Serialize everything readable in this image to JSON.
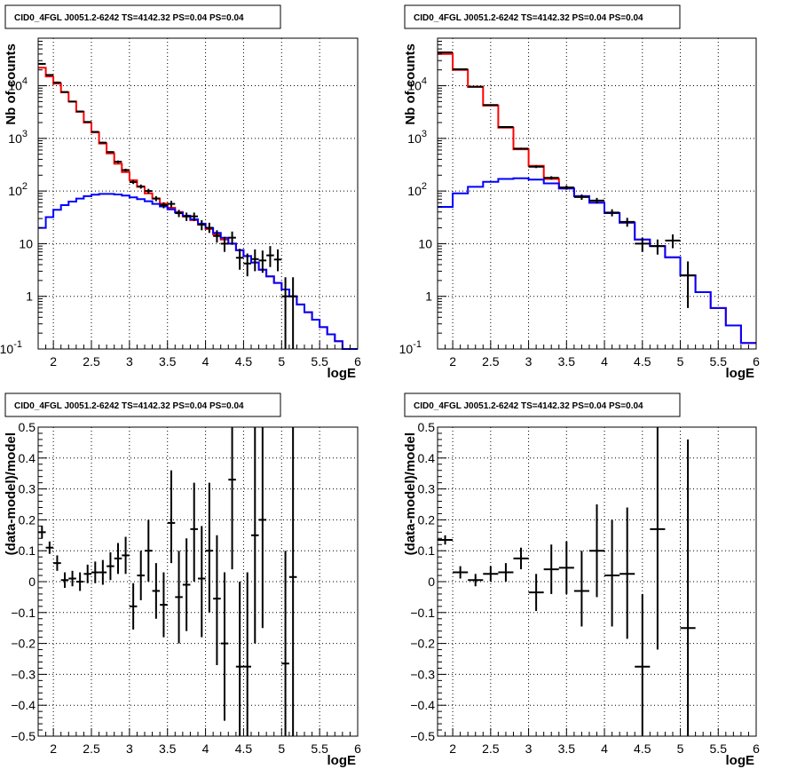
{
  "chart_data": [
    {
      "type": "histogram",
      "title": "CID0_4FGL J0051.2-6242 TS=4142.32 PS=0.04 PS=0.04",
      "xlabel": "logE",
      "ylabel": "Nb of counts",
      "log_y": true,
      "xlim": [
        1.8,
        6.0
      ],
      "ylim": [
        0.1,
        80000
      ],
      "grid": true,
      "x_ticks": [
        "2",
        "2.5",
        "3",
        "3.5",
        "4",
        "4.5",
        "5",
        "5.5",
        "6"
      ],
      "y_ticks": [
        "10^{-1}",
        "1",
        "10",
        "10^{2}",
        "10^{3}",
        "10^{4}"
      ],
      "bin_edges": [
        1.8,
        1.9,
        2.0,
        2.1,
        2.2,
        2.3,
        2.4,
        2.5,
        2.6,
        2.7,
        2.8,
        2.9,
        3.0,
        3.1,
        3.2,
        3.3,
        3.4,
        3.5,
        3.6,
        3.7,
        3.8,
        3.9,
        4.0,
        4.1,
        4.2,
        4.3,
        4.4,
        4.5,
        4.6,
        4.7,
        4.8,
        4.9,
        5.0,
        5.1,
        5.2,
        5.3,
        5.4,
        5.5,
        5.6,
        5.7,
        5.8,
        5.9,
        6.0
      ],
      "series": [
        {
          "color": "#ff0000",
          "style": "step",
          "values": [
            22000,
            15000,
            11000,
            7500,
            5000,
            3200,
            2000,
            1300,
            800,
            520,
            330,
            230,
            160,
            120,
            90,
            72,
            58,
            48,
            40,
            33,
            28,
            23,
            19,
            15,
            12,
            10,
            7.5,
            5.8,
            4.4,
            3.2,
            2.4,
            1.8,
            1.35,
            1.0,
            0.7,
            0.5,
            0.36,
            0.26,
            0.19,
            0.14,
            0.1,
            0.1
          ]
        },
        {
          "color": "#0000ff",
          "style": "step",
          "values": [
            20,
            32,
            44,
            54,
            63,
            72,
            80,
            85,
            88,
            88,
            86,
            82,
            76,
            70,
            64,
            57,
            51,
            45,
            39,
            34,
            29,
            24,
            20,
            16,
            13,
            10,
            7.5,
            5.8,
            4.4,
            3.2,
            2.4,
            1.8,
            1.35,
            1.0,
            0.7,
            0.5,
            0.36,
            0.26,
            0.19,
            0.14,
            0.1,
            0.1
          ]
        }
      ],
      "points": [
        {
          "x": 1.85,
          "y": 26000,
          "lo": 25000,
          "hi": 27000
        },
        {
          "x": 1.95,
          "y": 16000,
          "lo": 15500,
          "hi": 16500
        },
        {
          "x": 2.05,
          "y": 11500,
          "lo": 11000,
          "hi": 12000
        },
        {
          "x": 2.15,
          "y": 7600,
          "lo": 7400,
          "hi": 7800
        },
        {
          "x": 2.25,
          "y": 5000,
          "lo": 4900,
          "hi": 5100
        },
        {
          "x": 2.35,
          "y": 3250,
          "lo": 3150,
          "hi": 3350
        },
        {
          "x": 2.45,
          "y": 2050,
          "lo": 2000,
          "hi": 2100
        },
        {
          "x": 2.55,
          "y": 1330,
          "lo": 1290,
          "hi": 1370
        },
        {
          "x": 2.65,
          "y": 830,
          "lo": 800,
          "hi": 860
        },
        {
          "x": 2.75,
          "y": 550,
          "lo": 530,
          "hi": 570
        },
        {
          "x": 2.85,
          "y": 360,
          "lo": 340,
          "hi": 380
        },
        {
          "x": 2.95,
          "y": 250,
          "lo": 235,
          "hi": 265
        },
        {
          "x": 3.05,
          "y": 148,
          "lo": 136,
          "hi": 160
        },
        {
          "x": 3.15,
          "y": 122,
          "lo": 111,
          "hi": 133
        },
        {
          "x": 3.25,
          "y": 100,
          "lo": 90,
          "hi": 110
        },
        {
          "x": 3.35,
          "y": 72,
          "lo": 64,
          "hi": 80
        },
        {
          "x": 3.45,
          "y": 54,
          "lo": 47,
          "hi": 61
        },
        {
          "x": 3.55,
          "y": 57,
          "lo": 49,
          "hi": 65
        },
        {
          "x": 3.65,
          "y": 38,
          "lo": 32,
          "hi": 44
        },
        {
          "x": 3.75,
          "y": 33,
          "lo": 27,
          "hi": 39
        },
        {
          "x": 3.85,
          "y": 33,
          "lo": 27,
          "hi": 39
        },
        {
          "x": 3.95,
          "y": 23,
          "lo": 18,
          "hi": 28
        },
        {
          "x": 4.05,
          "y": 20,
          "lo": 16,
          "hi": 25
        },
        {
          "x": 4.15,
          "y": 14,
          "lo": 10.5,
          "hi": 18
        },
        {
          "x": 4.25,
          "y": 10,
          "lo": 7,
          "hi": 13.5
        },
        {
          "x": 4.35,
          "y": 13,
          "lo": 9.5,
          "hi": 17
        },
        {
          "x": 4.45,
          "y": 5.4,
          "lo": 3.2,
          "hi": 8
        },
        {
          "x": 4.55,
          "y": 4.2,
          "lo": 2.4,
          "hi": 6.5
        },
        {
          "x": 4.65,
          "y": 5.1,
          "lo": 3,
          "hi": 7.8
        },
        {
          "x": 4.75,
          "y": 4.8,
          "lo": 2.8,
          "hi": 7.4
        },
        {
          "x": 4.85,
          "y": 6,
          "lo": 3.6,
          "hi": 9
        },
        {
          "x": 4.95,
          "y": 5,
          "lo": 3,
          "hi": 7.8
        },
        {
          "x": 5.05,
          "y": 1,
          "lo": 0.1,
          "hi": 2.3
        },
        {
          "x": 5.15,
          "y": 1,
          "lo": 0.1,
          "hi": 2.3
        }
      ]
    },
    {
      "type": "histogram",
      "title": "CID0_4FGL J0051.2-6242 TS=4142.32 PS=0.04 PS=0.04",
      "xlabel": "logE",
      "ylabel": "Nb of counts",
      "log_y": true,
      "xlim": [
        1.8,
        6.0
      ],
      "ylim": [
        0.1,
        80000
      ],
      "grid": true,
      "x_ticks": [
        "2",
        "2.5",
        "3",
        "3.5",
        "4",
        "4.5",
        "5",
        "5.5",
        "6"
      ],
      "y_ticks": [
        "10^{-1}",
        "1",
        "10",
        "10^{2}",
        "10^{3}",
        "10^{4}"
      ],
      "bin_edges": [
        1.8,
        2.0,
        2.2,
        2.4,
        2.6,
        2.8,
        3.0,
        3.2,
        3.4,
        3.6,
        3.8,
        4.0,
        4.2,
        4.4,
        4.6,
        4.8,
        5.0,
        5.2,
        5.4,
        5.6,
        5.8,
        6.0
      ],
      "series": [
        {
          "color": "#ff0000",
          "style": "step",
          "values": [
            40000,
            20000,
            9500,
            4200,
            1600,
            620,
            300,
            170,
            112,
            80,
            60,
            38,
            25,
            12,
            9,
            5.5,
            2.5,
            1.2,
            0.6,
            0.28,
            0.13
          ]
        },
        {
          "color": "#0000ff",
          "style": "step",
          "values": [
            50,
            90,
            120,
            150,
            170,
            175,
            165,
            140,
            112,
            80,
            60,
            38,
            25,
            12,
            9,
            5.5,
            2.5,
            1.2,
            0.6,
            0.28,
            0.13
          ]
        }
      ],
      "points": [
        {
          "x": 1.9,
          "y": 43000,
          "lo": 42500,
          "hi": 43500
        },
        {
          "x": 2.1,
          "y": 20500,
          "lo": 20200,
          "hi": 20800
        },
        {
          "x": 2.3,
          "y": 9600,
          "lo": 9400,
          "hi": 9800
        },
        {
          "x": 2.5,
          "y": 4300,
          "lo": 4150,
          "hi": 4450
        },
        {
          "x": 2.7,
          "y": 1650,
          "lo": 1600,
          "hi": 1700
        },
        {
          "x": 2.9,
          "y": 640,
          "lo": 615,
          "hi": 665
        },
        {
          "x": 3.1,
          "y": 290,
          "lo": 273,
          "hi": 307
        },
        {
          "x": 3.3,
          "y": 178,
          "lo": 165,
          "hi": 191
        },
        {
          "x": 3.5,
          "y": 117,
          "lo": 106,
          "hi": 128
        },
        {
          "x": 3.7,
          "y": 77,
          "lo": 68,
          "hi": 86
        },
        {
          "x": 3.9,
          "y": 66,
          "lo": 58,
          "hi": 74
        },
        {
          "x": 4.1,
          "y": 39,
          "lo": 33,
          "hi": 45
        },
        {
          "x": 4.3,
          "y": 26,
          "lo": 21,
          "hi": 31
        },
        {
          "x": 4.5,
          "y": 10,
          "lo": 7,
          "hi": 13
        },
        {
          "x": 4.7,
          "y": 9,
          "lo": 6.2,
          "hi": 12
        },
        {
          "x": 4.9,
          "y": 11.5,
          "lo": 8.2,
          "hi": 15
        },
        {
          "x": 5.1,
          "y": 2.5,
          "lo": 0.6,
          "hi": 4.6
        }
      ]
    },
    {
      "type": "scatter",
      "title": "CID0_4FGL J0051.2-6242 TS=4142.32 PS=0.04 PS=0.04",
      "xlabel": "logE",
      "ylabel": "(data-model)/model",
      "xlim": [
        1.8,
        6.0
      ],
      "ylim": [
        -0.5,
        0.5
      ],
      "grid": true,
      "x_ticks": [
        "2",
        "2.5",
        "3",
        "3.5",
        "4",
        "4.5",
        "5",
        "5.5",
        "6"
      ],
      "y_ticks": [
        "−0.5",
        "−0.4",
        "−0.3",
        "−0.2",
        "−0.1",
        "0",
        "0.1",
        "0.2",
        "0.3",
        "0.4",
        "0.5"
      ],
      "half_bin_width": 0.05,
      "points": [
        {
          "x": 1.85,
          "y": 0.16,
          "lo": 0.14,
          "hi": 0.18
        },
        {
          "x": 1.95,
          "y": 0.11,
          "lo": 0.09,
          "hi": 0.13
        },
        {
          "x": 2.05,
          "y": 0.06,
          "lo": 0.035,
          "hi": 0.085
        },
        {
          "x": 2.15,
          "y": 0.005,
          "lo": -0.02,
          "hi": 0.03
        },
        {
          "x": 2.25,
          "y": 0.01,
          "lo": -0.015,
          "hi": 0.035
        },
        {
          "x": 2.35,
          "y": 0.0,
          "lo": -0.03,
          "hi": 0.03
        },
        {
          "x": 2.45,
          "y": 0.025,
          "lo": -0.005,
          "hi": 0.055
        },
        {
          "x": 2.55,
          "y": 0.03,
          "lo": -0.005,
          "hi": 0.065
        },
        {
          "x": 2.65,
          "y": 0.03,
          "lo": -0.01,
          "hi": 0.07
        },
        {
          "x": 2.75,
          "y": 0.05,
          "lo": 0.005,
          "hi": 0.095
        },
        {
          "x": 2.85,
          "y": 0.075,
          "lo": 0.025,
          "hi": 0.125
        },
        {
          "x": 2.95,
          "y": 0.085,
          "lo": 0.025,
          "hi": 0.145
        },
        {
          "x": 3.05,
          "y": -0.08,
          "lo": -0.155,
          "hi": -0.005
        },
        {
          "x": 3.15,
          "y": 0.02,
          "lo": -0.06,
          "hi": 0.1
        },
        {
          "x": 3.25,
          "y": 0.1,
          "lo": 0.0,
          "hi": 0.2
        },
        {
          "x": 3.35,
          "y": -0.03,
          "lo": -0.12,
          "hi": 0.06
        },
        {
          "x": 3.45,
          "y": -0.075,
          "lo": -0.18,
          "hi": 0.03
        },
        {
          "x": 3.55,
          "y": 0.19,
          "lo": 0.06,
          "hi": 0.36
        },
        {
          "x": 3.65,
          "y": -0.05,
          "lo": -0.2,
          "hi": 0.1
        },
        {
          "x": 3.75,
          "y": -0.01,
          "lo": -0.16,
          "hi": 0.14
        },
        {
          "x": 3.85,
          "y": 0.17,
          "lo": 0.0,
          "hi": 0.32
        },
        {
          "x": 3.95,
          "y": 0.01,
          "lo": -0.18,
          "hi": 0.18
        },
        {
          "x": 4.05,
          "y": 0.1,
          "lo": -0.1,
          "hi": 0.32
        },
        {
          "x": 4.15,
          "y": -0.055,
          "lo": -0.27,
          "hi": 0.15
        },
        {
          "x": 4.25,
          "y": -0.2,
          "lo": -0.45,
          "hi": 0.03
        },
        {
          "x": 4.35,
          "y": 0.33,
          "lo": 0.04,
          "hi": 0.5
        },
        {
          "x": 4.45,
          "y": -0.275,
          "lo": -0.5,
          "hi": 0.0
        },
        {
          "x": 4.55,
          "y": -0.275,
          "lo": -0.5,
          "hi": 0.03
        },
        {
          "x": 4.65,
          "y": 0.15,
          "lo": -0.2,
          "hi": 0.5
        },
        {
          "x": 4.75,
          "y": 0.2,
          "lo": -0.15,
          "hi": 0.5
        },
        {
          "x": 5.05,
          "y": -0.265,
          "lo": -0.5,
          "hi": 0.1
        },
        {
          "x": 5.15,
          "y": 0.015,
          "lo": -0.5,
          "hi": 0.5
        }
      ]
    },
    {
      "type": "scatter",
      "title": "CID0_4FGL J0051.2-6242 TS=4142.32 PS=0.04 PS=0.04",
      "xlabel": "logE",
      "ylabel": "(data-model)/model",
      "xlim": [
        1.8,
        6.0
      ],
      "ylim": [
        -0.5,
        0.5
      ],
      "grid": true,
      "x_ticks": [
        "2",
        "2.5",
        "3",
        "3.5",
        "4",
        "4.5",
        "5",
        "5.5",
        "6"
      ],
      "y_ticks": [
        "−0.5",
        "−0.4",
        "−0.3",
        "−0.2",
        "−0.1",
        "0",
        "0.1",
        "0.2",
        "0.3",
        "0.4",
        "0.5"
      ],
      "half_bin_width": 0.1,
      "points": [
        {
          "x": 1.9,
          "y": 0.135,
          "lo": 0.12,
          "hi": 0.15
        },
        {
          "x": 2.1,
          "y": 0.03,
          "lo": 0.01,
          "hi": 0.05
        },
        {
          "x": 2.3,
          "y": 0.005,
          "lo": -0.015,
          "hi": 0.025
        },
        {
          "x": 2.5,
          "y": 0.025,
          "lo": 0.0,
          "hi": 0.05
        },
        {
          "x": 2.7,
          "y": 0.03,
          "lo": 0.0,
          "hi": 0.06
        },
        {
          "x": 2.9,
          "y": 0.075,
          "lo": 0.04,
          "hi": 0.11
        },
        {
          "x": 3.1,
          "y": -0.035,
          "lo": -0.095,
          "hi": 0.025
        },
        {
          "x": 3.3,
          "y": 0.04,
          "lo": -0.04,
          "hi": 0.12
        },
        {
          "x": 3.5,
          "y": 0.045,
          "lo": -0.04,
          "hi": 0.13
        },
        {
          "x": 3.7,
          "y": -0.03,
          "lo": -0.145,
          "hi": 0.1
        },
        {
          "x": 3.9,
          "y": 0.1,
          "lo": -0.05,
          "hi": 0.25
        },
        {
          "x": 4.1,
          "y": 0.02,
          "lo": -0.145,
          "hi": 0.2
        },
        {
          "x": 4.3,
          "y": 0.025,
          "lo": -0.185,
          "hi": 0.24
        },
        {
          "x": 4.5,
          "y": -0.275,
          "lo": -0.5,
          "hi": -0.04
        },
        {
          "x": 4.7,
          "y": 0.17,
          "lo": -0.22,
          "hi": 0.5
        },
        {
          "x": 5.1,
          "y": -0.15,
          "lo": -0.5,
          "hi": 0.46
        }
      ]
    }
  ]
}
